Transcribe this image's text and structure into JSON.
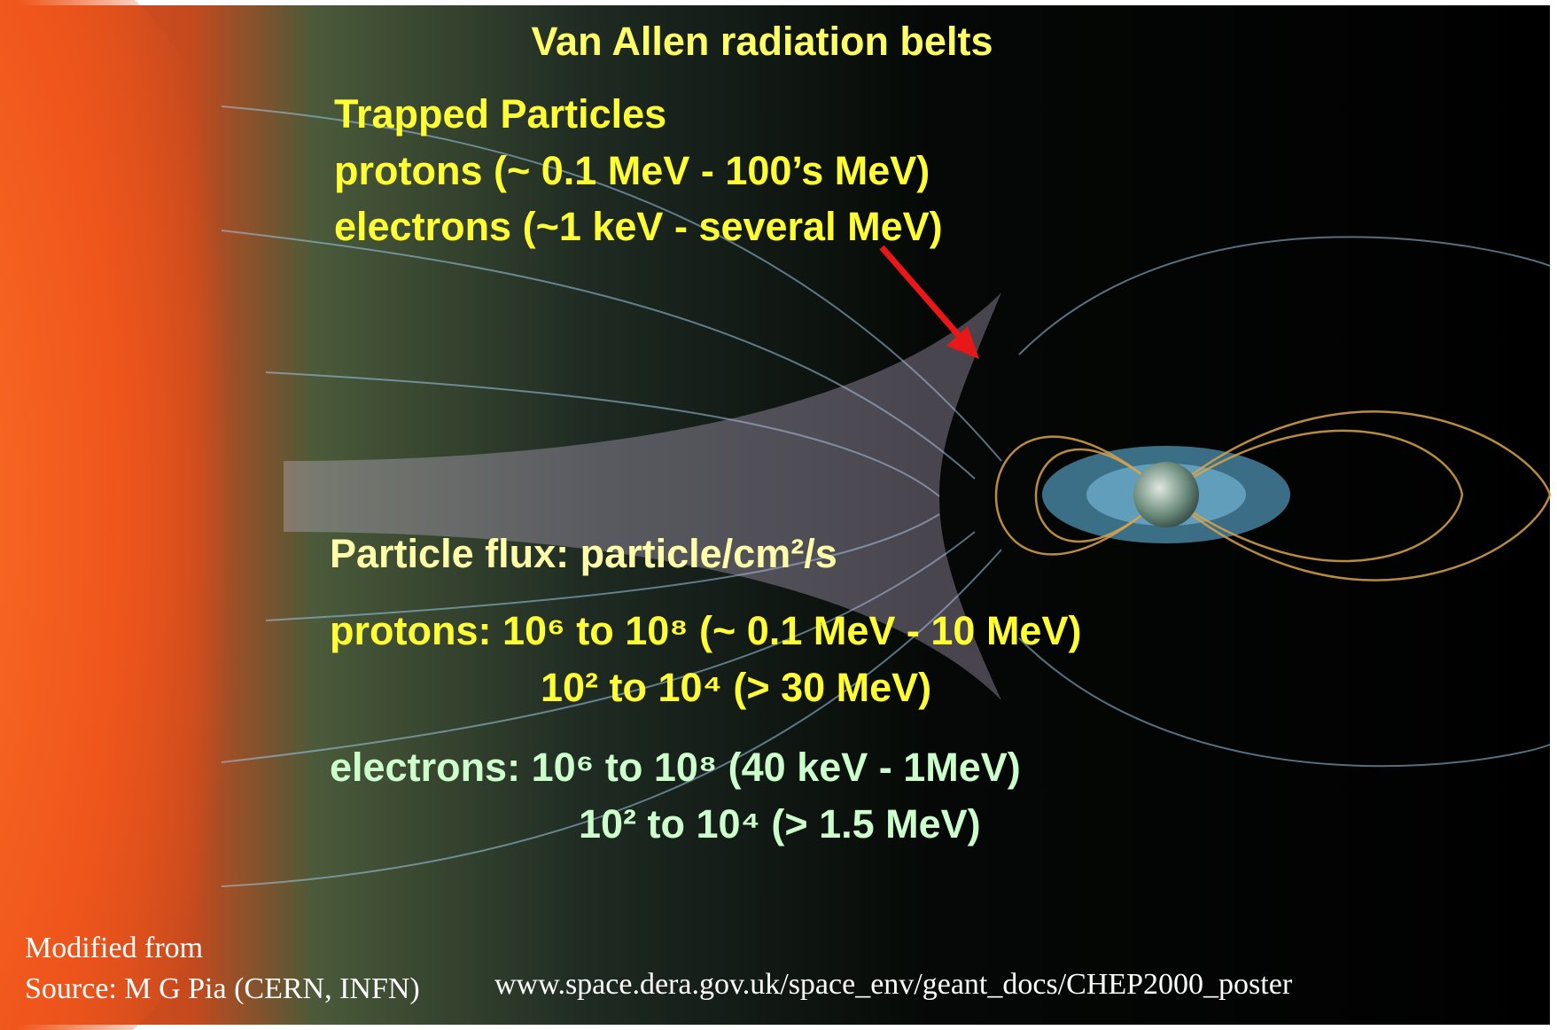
{
  "slide": {
    "title": "Van Allen radiation belts",
    "trapped": [
      "Trapped Particles",
      "protons (~ 0.1 MeV - 100’s MeV)",
      "electrons (~1 keV - several MeV)"
    ],
    "flux_heading": "Particle flux: particle/cm²/s",
    "protons": [
      "protons: 10⁶ to 10⁸ (~ 0.1 MeV - 10 MeV)",
      "10² to 10⁴ (> 30 MeV)"
    ],
    "electrons": [
      "electrons: 10⁶ to 10⁸ (40 keV - 1MeV)",
      "10² to 10⁴ (> 1.5 MeV)"
    ],
    "credit": [
      "Modified from",
      "Source: M G Pia (CERN, INFN)"
    ],
    "url": "www.space.dera.gov.uk/space_env/geant_docs/CHEP2000_poster"
  }
}
